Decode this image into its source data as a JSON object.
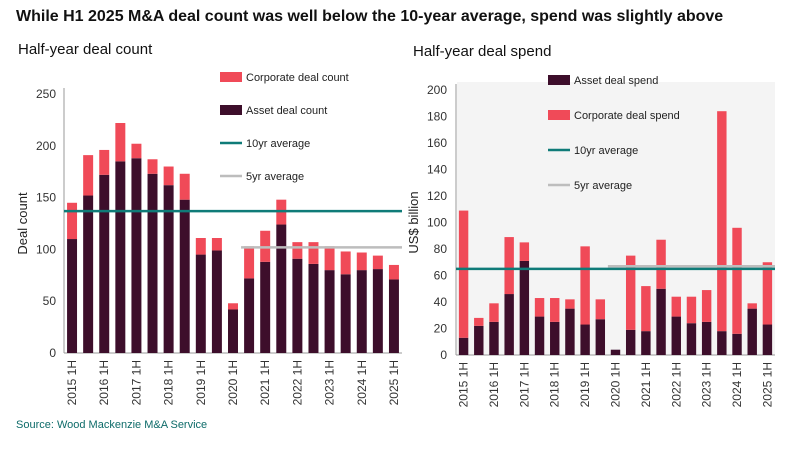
{
  "page": {
    "title": "While H1 2025 M&A deal count was well below the 10-year average, spend was slightly above",
    "source": "Source: Wood Mackenzie M&A Service"
  },
  "colors": {
    "asset": "#3d0e2b",
    "corporate": "#f04a58",
    "avg10": "#0f7b78",
    "avg5": "#bdbdbd",
    "axis": "#9a9a9a"
  },
  "chart_data": [
    {
      "type": "bar",
      "stacked": true,
      "title": "Half-year deal count",
      "ylabel": "Deal count",
      "xlabel": "",
      "ylim": [
        0,
        250
      ],
      "yticks": [
        0,
        50,
        100,
        150,
        200,
        250
      ],
      "categories": [
        "2015 1H",
        "2015 2H",
        "2016 1H",
        "2016 2H",
        "2017 1H",
        "2017 2H",
        "2018 1H",
        "2018 2H",
        "2019 1H",
        "2019 2H",
        "2020 1H",
        "2020 2H",
        "2021 1H",
        "2021 2H",
        "2022 1H",
        "2022 2H",
        "2023 1H",
        "2023 2H",
        "2024 1H",
        "2024 2H",
        "2025 1H"
      ],
      "xtick_labels": [
        "2015 1H",
        "2016 1H",
        "2017 1H",
        "2018 1H",
        "2019 1H",
        "2020 1H",
        "2021 1H",
        "2022 1H",
        "2023 1H",
        "2024 1H",
        "2025 1H"
      ],
      "series": [
        {
          "name": "Asset deal count",
          "values": [
            110,
            152,
            172,
            185,
            188,
            173,
            162,
            148,
            95,
            99,
            42,
            72,
            88,
            124,
            91,
            86,
            80,
            76,
            80,
            81,
            71
          ]
        },
        {
          "name": "Corporate deal count",
          "values": [
            35,
            39,
            24,
            37,
            14,
            14,
            18,
            25,
            16,
            12,
            6,
            31,
            30,
            24,
            16,
            21,
            23,
            22,
            17,
            13,
            14
          ]
        }
      ],
      "reference_lines": [
        {
          "name": "10yr average",
          "value": 137,
          "x_start": "2015 1H",
          "x_end": "2025 1H"
        },
        {
          "name": "5yr average",
          "value": 102,
          "x_start": "2020 2H",
          "x_end": "2025 1H"
        }
      ],
      "legend_labels": [
        "Corporate deal count",
        "Asset deal count",
        "10yr average",
        "5yr average"
      ],
      "legend_position": "top-right"
    },
    {
      "type": "bar",
      "stacked": true,
      "title": "Half-year deal spend",
      "ylabel": "US$ billion",
      "xlabel": "",
      "ylim": [
        0,
        200
      ],
      "yticks": [
        0,
        20,
        40,
        60,
        80,
        100,
        120,
        140,
        160,
        180,
        200
      ],
      "categories": [
        "2015 1H",
        "2015 2H",
        "2016 1H",
        "2016 2H",
        "2017 1H",
        "2017 2H",
        "2018 1H",
        "2018 2H",
        "2019 1H",
        "2019 2H",
        "2020 1H",
        "2020 2H",
        "2021 1H",
        "2021 2H",
        "2022 1H",
        "2022 2H",
        "2023 1H",
        "2023 2H",
        "2024 1H",
        "2024 2H",
        "2025 1H"
      ],
      "xtick_labels": [
        "2015 1H",
        "2016 1H",
        "2017 1H",
        "2018 1H",
        "2019 1H",
        "2020 1H",
        "2021 1H",
        "2022 1H",
        "2023 1H",
        "2024 1H",
        "2025 1H"
      ],
      "series": [
        {
          "name": "Asset deal spend",
          "values": [
            13,
            22,
            25,
            46,
            71,
            29,
            25,
            35,
            23,
            27,
            4,
            19,
            18,
            50,
            29,
            24,
            25,
            18,
            16,
            35,
            23
          ]
        },
        {
          "name": "Corporate deal spend",
          "values": [
            96,
            6,
            14,
            43,
            14,
            14,
            18,
            7,
            59,
            15,
            0,
            56,
            34,
            37,
            15,
            20,
            24,
            166,
            80,
            4,
            47
          ]
        }
      ],
      "reference_lines": [
        {
          "name": "10yr average",
          "value": 65,
          "x_start": "2015 1H",
          "x_end": "2025 1H"
        },
        {
          "name": "5yr average",
          "value": 67,
          "x_start": "2020 1H",
          "x_end": "2025 1H"
        }
      ],
      "legend_labels": [
        "Asset deal spend",
        "Corporate deal spend",
        "10yr average",
        "5yr average"
      ],
      "legend_position": "top-left"
    }
  ]
}
